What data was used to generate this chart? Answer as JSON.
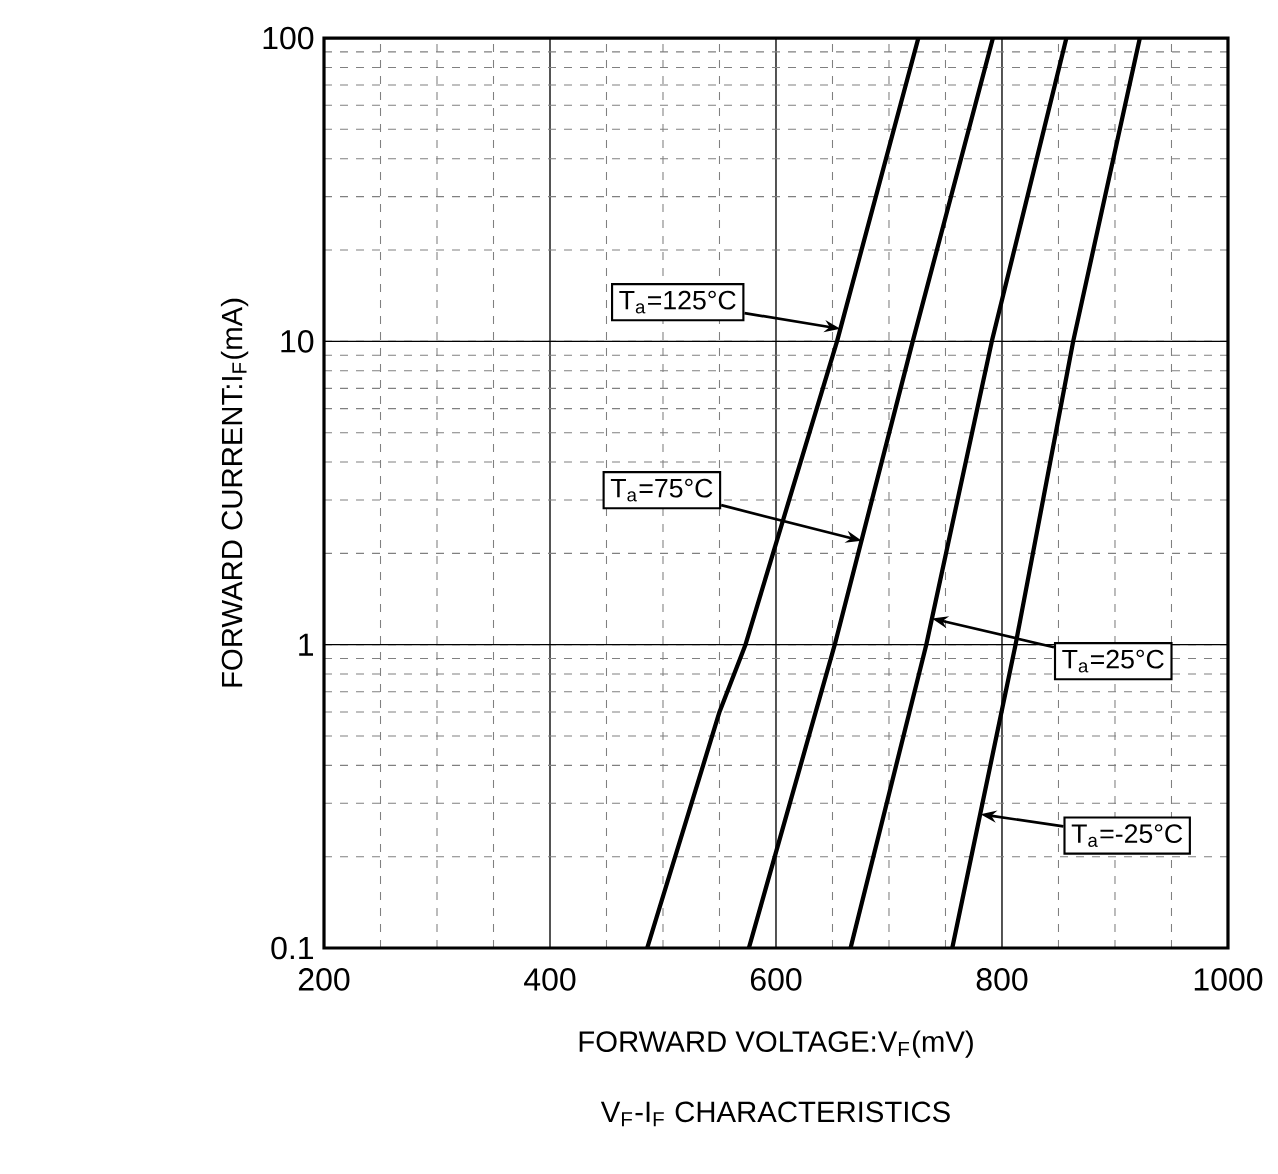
{
  "chart_data": {
    "type": "line",
    "title": "V$_{F}$-I$_{F}$ CHARACTERISTICS",
    "xlabel": "FORWARD VOLTAGE:V$_{F}$(mV)",
    "ylabel": "FORWARD CURRENT:I$_{F}$(mA)",
    "series": [
      {
        "color": "#000000",
        "x": [
          486,
          550,
          573,
          654,
          726
        ],
        "values": [
          0.1,
          0.6,
          1,
          10,
          100
        ]
      },
      {
        "color": "#000000",
        "x": [
          576,
          652,
          721,
          792
        ],
        "values": [
          0.1,
          1,
          10,
          100
        ]
      },
      {
        "color": "#000000",
        "x": [
          666,
          733,
          791,
          857
        ],
        "values": [
          0.1,
          1,
          10,
          100
        ]
      },
      {
        "color": "#000000",
        "x": [
          756,
          812,
          863,
          922
        ],
        "values": [
          0.1,
          1,
          10,
          100
        ]
      }
    ],
    "annotations": [
      {
        "text": "T$_{a}$=125°C",
        "x": 657,
        "y": 11
      },
      {
        "text": "T$_{a}$=75°C",
        "x": 676,
        "y": 2.2
      },
      {
        "text": "T$_{a}$=25°C",
        "x": 738,
        "y": 1.22
      },
      {
        "text": "T$_{a}$=-25°C",
        "x": 781,
        "y": 0.276
      }
    ],
    "xlim": [
      200,
      1000
    ],
    "xticks": [
      200,
      400,
      600,
      800,
      1000
    ],
    "ylim": [
      0.1,
      100
    ],
    "yticks": [
      0.1,
      1,
      10,
      100
    ],
    "log": "y",
    "grid": true,
    "marker": "none",
    "line_style": "solid"
  }
}
